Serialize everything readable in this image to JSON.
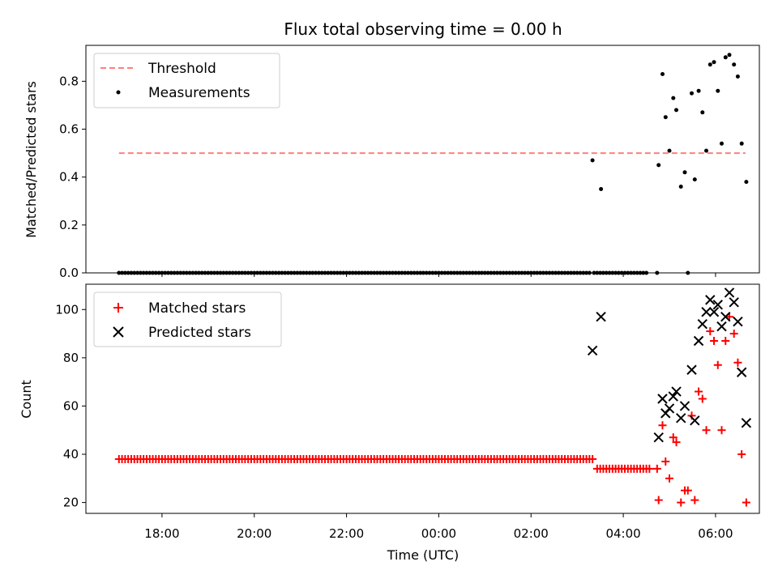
{
  "chart_data": [
    {
      "type": "scatter",
      "title": "Flux total observing time = 0.00 h",
      "xlabel": "",
      "ylabel": "Matched/Predicted stars",
      "ylim": [
        0,
        0.95
      ],
      "yticks": [
        0.0,
        0.2,
        0.4,
        0.6,
        0.8
      ],
      "xlim": [
        "16:21",
        "06:57"
      ],
      "legend": "top-left",
      "threshold": {
        "name": "Threshold",
        "value": 0.5,
        "x_range": [
          "17:04",
          "06:39"
        ],
        "color": "#ff7f7f"
      },
      "series": [
        {
          "name": "Measurements",
          "color": "#000000",
          "zero_run": {
            "start": "17:04",
            "end": "03:18",
            "step_minutes": 4,
            "value": 0
          },
          "zero_run_2": {
            "start": "03:22",
            "end": "04:30",
            "step_minutes": 4,
            "value": 0
          },
          "points": [
            [
              "03:20",
              0.47
            ],
            [
              "03:31",
              0.35
            ],
            [
              "04:44",
              0.0
            ],
            [
              "04:46",
              0.45
            ],
            [
              "04:51",
              0.83
            ],
            [
              "04:55",
              0.65
            ],
            [
              "05:00",
              0.51
            ],
            [
              "05:05",
              0.73
            ],
            [
              "05:09",
              0.68
            ],
            [
              "05:15",
              0.36
            ],
            [
              "05:20",
              0.42
            ],
            [
              "05:24",
              0.0
            ],
            [
              "05:29",
              0.75
            ],
            [
              "05:33",
              0.39
            ],
            [
              "05:38",
              0.76
            ],
            [
              "05:43",
              0.67
            ],
            [
              "05:48",
              0.51
            ],
            [
              "05:53",
              0.87
            ],
            [
              "05:58",
              0.88
            ],
            [
              "06:03",
              0.76
            ],
            [
              "06:08",
              0.54
            ],
            [
              "06:13",
              0.9
            ],
            [
              "06:18",
              0.91
            ],
            [
              "06:24",
              0.87
            ],
            [
              "06:29",
              0.82
            ],
            [
              "06:34",
              0.54
            ],
            [
              "06:40",
              0.38
            ]
          ]
        }
      ]
    },
    {
      "type": "scatter",
      "title": "",
      "xlabel": "Time (UTC)",
      "ylabel": "Count",
      "ylim": [
        15.5,
        110.5
      ],
      "yticks": [
        20,
        40,
        60,
        80,
        100
      ],
      "xlim": [
        "16:21",
        "06:57"
      ],
      "xticks": [
        "18:00",
        "20:00",
        "22:00",
        "00:00",
        "02:00",
        "04:00",
        "06:00"
      ],
      "legend": "top-left",
      "series": [
        {
          "name": "Matched stars",
          "color": "#ff0000",
          "marker": "plus",
          "constant_runs": [
            {
              "start": "17:04",
              "end": "03:22",
              "step_minutes": 4,
              "value": 38
            },
            {
              "start": "03:26",
              "end": "04:34",
              "step_minutes": 4,
              "value": 34
            }
          ],
          "points": [
            [
              "04:44",
              34
            ],
            [
              "04:46",
              21
            ],
            [
              "04:51",
              52
            ],
            [
              "04:55",
              37
            ],
            [
              "05:00",
              30
            ],
            [
              "05:05",
              47
            ],
            [
              "05:09",
              45
            ],
            [
              "05:15",
              20
            ],
            [
              "05:20",
              25
            ],
            [
              "05:24",
              25
            ],
            [
              "05:29",
              56
            ],
            [
              "05:33",
              21
            ],
            [
              "05:38",
              66
            ],
            [
              "05:43",
              63
            ],
            [
              "05:48",
              50
            ],
            [
              "05:53",
              91
            ],
            [
              "05:58",
              87
            ],
            [
              "06:03",
              77
            ],
            [
              "06:08",
              50
            ],
            [
              "06:13",
              87
            ],
            [
              "06:18",
              97
            ],
            [
              "06:24",
              90
            ],
            [
              "06:29",
              78
            ],
            [
              "06:34",
              40
            ],
            [
              "06:40",
              20
            ]
          ]
        },
        {
          "name": "Predicted stars",
          "color": "#000000",
          "marker": "x",
          "points": [
            [
              "03:20",
              83
            ],
            [
              "03:31",
              97
            ],
            [
              "04:46",
              47
            ],
            [
              "04:51",
              63
            ],
            [
              "04:55",
              57
            ],
            [
              "05:00",
              59
            ],
            [
              "05:05",
              64
            ],
            [
              "05:09",
              66
            ],
            [
              "05:15",
              55
            ],
            [
              "05:20",
              60
            ],
            [
              "05:29",
              75
            ],
            [
              "05:33",
              54
            ],
            [
              "05:38",
              87
            ],
            [
              "05:43",
              94
            ],
            [
              "05:48",
              99
            ],
            [
              "05:53",
              104
            ],
            [
              "05:58",
              99
            ],
            [
              "06:03",
              102
            ],
            [
              "06:08",
              93
            ],
            [
              "06:13",
              97
            ],
            [
              "06:18",
              107
            ],
            [
              "06:24",
              103
            ],
            [
              "06:29",
              95
            ],
            [
              "06:34",
              74
            ],
            [
              "06:40",
              53
            ]
          ]
        }
      ]
    }
  ]
}
